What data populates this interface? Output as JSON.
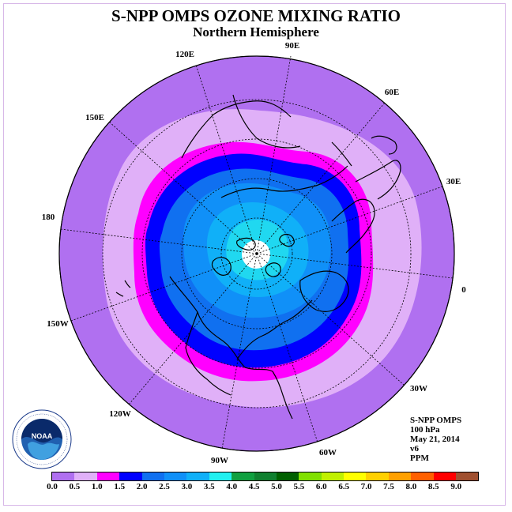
{
  "header": {
    "title": "S-NPP OMPS OZONE MIXING RATIO",
    "subtitle": "Northern Hemisphere"
  },
  "longitude_labels": [
    "90E",
    "60E",
    "30E",
    "0",
    "30W",
    "60W",
    "90W",
    "120W",
    "150W",
    "180",
    "150E",
    "120E"
  ],
  "info": {
    "instrument": "S-NPP OMPS",
    "level": "100 hPa",
    "date": "May 21, 2014",
    "version": "v6",
    "units": "PPM"
  },
  "logo": {
    "text": "NOAA",
    "ring_text": "NATIONAL OCEANIC AND ATMOSPHERIC ADMINISTRATION · U.S. DEPARTMENT OF COMMERCE"
  },
  "colorbar": {
    "ticks": [
      "0.0",
      "0.5",
      "1.0",
      "1.5",
      "2.0",
      "2.5",
      "3.0",
      "3.5",
      "4.0",
      "4.5",
      "5.0",
      "5.5",
      "6.0",
      "6.5",
      "7.0",
      "7.5",
      "8.0",
      "8.5",
      "9.0"
    ],
    "colors": [
      "#b070f0",
      "#e0b0f8",
      "#ff00ff",
      "#0000ff",
      "#1070f0",
      "#1090f8",
      "#10b0f8",
      "#20f0f0",
      "#10a040",
      "#108030",
      "#006000",
      "#80e000",
      "#c0f000",
      "#ffff00",
      "#ffd000",
      "#ffa000",
      "#ff6000",
      "#ff0000",
      "#a05030"
    ]
  },
  "map_colors": {
    "background": "#b070f0",
    "band1": "#e0b0f8",
    "band2": "#ff00ff",
    "band3": "#0000ff",
    "band4": "#1070f0",
    "band5": "#1090f8",
    "band6": "#10b0f8",
    "band7": "#20d8f0",
    "pole": "#ffffff"
  }
}
